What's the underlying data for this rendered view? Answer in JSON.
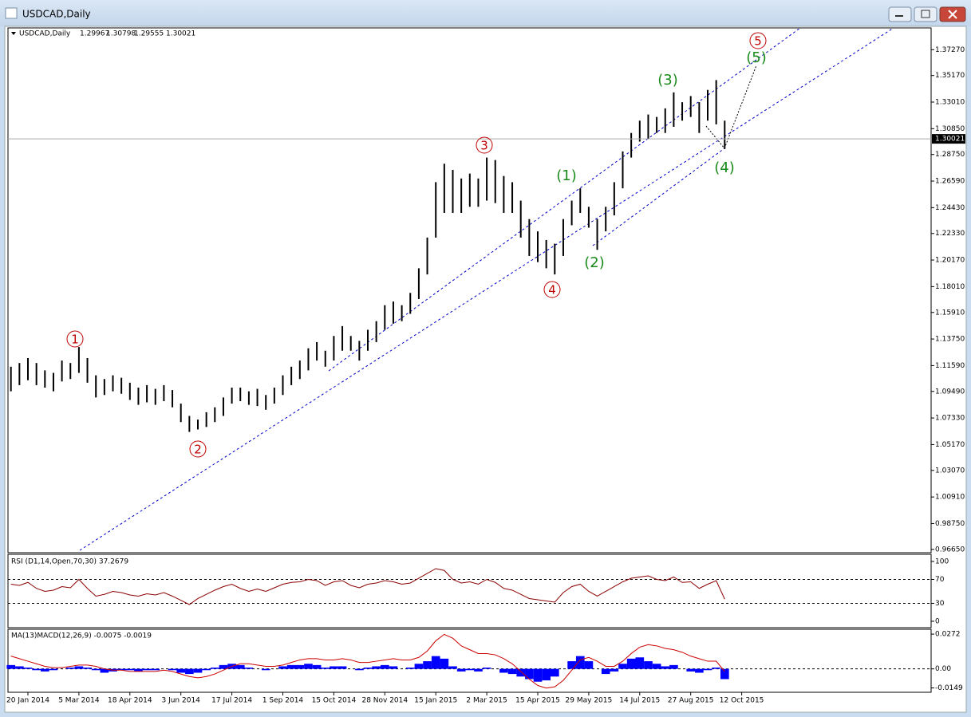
{
  "window": {
    "title": "USDCAD,Daily"
  },
  "chart_data": [
    {
      "type": "ohlc",
      "symbol": "USDCAD,Daily",
      "quote": [
        1.29967,
        1.30798,
        1.29555,
        1.30021
      ],
      "xticks": [
        {
          "value": 2,
          "label": "20 Jan 2014"
        },
        {
          "value": 8,
          "label": "5 Mar 2014"
        },
        {
          "value": 14,
          "label": "18 Apr 2014"
        },
        {
          "value": 20,
          "label": "3 Jun 2014"
        },
        {
          "value": 26,
          "label": "17 Jul 2014"
        },
        {
          "value": 32,
          "label": "1 Sep 2014"
        },
        {
          "value": 38,
          "label": "15 Oct 2014"
        },
        {
          "value": 44,
          "label": "28 Nov 2014"
        },
        {
          "value": 50,
          "label": "15 Jan 2015"
        },
        {
          "value": 56,
          "label": "2 Mar 2015"
        },
        {
          "value": 62,
          "label": "15 Apr 2015"
        },
        {
          "value": 68,
          "label": "29 May 2015"
        },
        {
          "value": 74,
          "label": "14 Jul 2015"
        },
        {
          "value": 80,
          "label": "27 Aug 2015"
        },
        {
          "value": 86,
          "label": "12 Oct 2015"
        }
      ],
      "ylim": [
        0.9638,
        1.3904
      ],
      "yticks": [
        {
          "value": 1.3727,
          "label": "1.37270"
        },
        {
          "value": 1.3517,
          "label": "1.35170"
        },
        {
          "value": 1.3301,
          "label": "1.33010"
        },
        {
          "value": 1.3085,
          "label": "1.30850"
        },
        {
          "value": 1.2875,
          "label": "1.28750"
        },
        {
          "value": 1.2659,
          "label": "1.26590"
        },
        {
          "value": 1.2443,
          "label": "1.24430"
        },
        {
          "value": 1.2233,
          "label": "1.22330"
        },
        {
          "value": 1.2017,
          "label": "1.20170"
        },
        {
          "value": 1.1801,
          "label": "1.18010"
        },
        {
          "value": 1.1591,
          "label": "1.15910"
        },
        {
          "value": 1.1375,
          "label": "1.13750"
        },
        {
          "value": 1.1159,
          "label": "1.11590"
        },
        {
          "value": 1.0949,
          "label": "1.09490"
        },
        {
          "value": 1.0733,
          "label": "1.07330"
        },
        {
          "value": 1.0517,
          "label": "1.05170"
        },
        {
          "value": 1.0307,
          "label": "1.03070"
        },
        {
          "value": 1.0091,
          "label": "1.00910"
        },
        {
          "value": 0.9875,
          "label": "0.98750"
        },
        {
          "value": 0.9665,
          "label": "0.96650"
        }
      ],
      "current_price": 1.30021,
      "color": "#000000",
      "highs": [
        1.115,
        1.118,
        1.122,
        1.118,
        1.112,
        1.11,
        1.12,
        1.118,
        1.131,
        1.122,
        1.108,
        1.105,
        1.108,
        1.106,
        1.102,
        1.098,
        1.1,
        1.097,
        1.1,
        1.096,
        1.085,
        1.075,
        1.072,
        1.078,
        1.082,
        1.09,
        1.098,
        1.098,
        1.095,
        1.097,
        1.092,
        1.098,
        1.108,
        1.115,
        1.12,
        1.13,
        1.135,
        1.128,
        1.14,
        1.148,
        1.14,
        1.136,
        1.145,
        1.152,
        1.165,
        1.168,
        1.165,
        1.175,
        1.195,
        1.22,
        1.265,
        1.28,
        1.275,
        1.268,
        1.272,
        1.268,
        1.285,
        1.283,
        1.27,
        1.265,
        1.25,
        1.235,
        1.225,
        1.218,
        1.215,
        1.235,
        1.25,
        1.26,
        1.245,
        1.235,
        1.245,
        1.265,
        1.29,
        1.305,
        1.315,
        1.32,
        1.318,
        1.325,
        1.338,
        1.33,
        1.335,
        1.33,
        1.34,
        1.348,
        1.315
      ],
      "lows": [
        1.095,
        1.1,
        1.104,
        1.1,
        1.098,
        1.095,
        1.103,
        1.105,
        1.11,
        1.102,
        1.09,
        1.092,
        1.095,
        1.093,
        1.088,
        1.084,
        1.086,
        1.084,
        1.087,
        1.082,
        1.07,
        1.062,
        1.064,
        1.066,
        1.07,
        1.075,
        1.085,
        1.087,
        1.084,
        1.083,
        1.08,
        1.085,
        1.092,
        1.1,
        1.105,
        1.112,
        1.12,
        1.115,
        1.12,
        1.128,
        1.128,
        1.12,
        1.128,
        1.135,
        1.145,
        1.15,
        1.152,
        1.158,
        1.17,
        1.19,
        1.22,
        1.24,
        1.24,
        1.24,
        1.245,
        1.245,
        1.25,
        1.248,
        1.24,
        1.24,
        1.22,
        1.205,
        1.2,
        1.195,
        1.19,
        1.205,
        1.23,
        1.24,
        1.228,
        1.21,
        1.225,
        1.238,
        1.26,
        1.285,
        1.298,
        1.3,
        1.305,
        1.305,
        1.31,
        1.315,
        1.318,
        1.305,
        1.315,
        1.312,
        1.292
      ],
      "waves_primary": [
        "1",
        "2",
        "3",
        "4",
        "5"
      ],
      "waves_minor": [
        "(1)",
        "(2)",
        "(3)",
        "(4)",
        "(5)"
      ]
    },
    {
      "type": "line",
      "title": "RSI (D1,14,Open,70,30) 37.2679",
      "ylim": [
        -10.7,
        112
      ],
      "yticks": [
        100,
        70,
        30,
        0
      ],
      "color": "#8b0000",
      "values": [
        62,
        60,
        65,
        55,
        50,
        52,
        58,
        56,
        70,
        55,
        42,
        45,
        50,
        48,
        44,
        42,
        46,
        44,
        48,
        42,
        35,
        28,
        38,
        45,
        52,
        58,
        62,
        55,
        50,
        54,
        50,
        56,
        62,
        65,
        66,
        70,
        68,
        60,
        66,
        68,
        60,
        56,
        62,
        64,
        68,
        66,
        62,
        64,
        72,
        80,
        88,
        85,
        70,
        64,
        66,
        62,
        70,
        65,
        55,
        52,
        45,
        38,
        36,
        34,
        32,
        48,
        58,
        62,
        50,
        42,
        50,
        58,
        66,
        72,
        74,
        76,
        70,
        68,
        74,
        65,
        66,
        55,
        62,
        68,
        37
      ]
    },
    {
      "type": "histogram",
      "title": "MA(13)MACD(12,26,9) -0.0075 -0.0019",
      "ylim": [
        -0.0183,
        0.031
      ],
      "yticks": [
        0.0272,
        {
          "value": 0,
          "label": "0.00"
        },
        -0.0149
      ],
      "color": "#0000ff",
      "line_color": "#cc0000",
      "values": [
        0.003,
        0.002,
        0.001,
        -0.001,
        -0.002,
        -0.001,
        0.0,
        0.001,
        0.002,
        0.001,
        -0.001,
        -0.003,
        -0.002,
        -0.001,
        -0.001,
        -0.002,
        -0.001,
        -0.001,
        0.0,
        -0.001,
        -0.003,
        -0.004,
        -0.003,
        -0.001,
        0.001,
        0.003,
        0.004,
        0.003,
        0.001,
        0.0,
        -0.001,
        0.0,
        0.002,
        0.003,
        0.003,
        0.004,
        0.003,
        0.001,
        0.002,
        0.002,
        0.0,
        -0.001,
        0.001,
        0.002,
        0.003,
        0.002,
        0.0,
        0.001,
        0.004,
        0.006,
        0.01,
        0.008,
        0.002,
        -0.002,
        -0.001,
        -0.002,
        0.001,
        0.0,
        -0.003,
        -0.004,
        -0.006,
        -0.008,
        -0.01,
        -0.009,
        -0.006,
        0.0,
        0.006,
        0.01,
        0.006,
        0.0,
        -0.004,
        -0.002,
        0.004,
        0.008,
        0.009,
        0.006,
        0.004,
        0.002,
        0.003,
        0.0,
        -0.002,
        -0.003,
        -0.001,
        0.001,
        -0.008
      ],
      "signal": [
        0.01,
        0.008,
        0.006,
        0.004,
        0.002,
        0.001,
        0.001,
        0.002,
        0.003,
        0.003,
        0.002,
        0.0,
        -0.001,
        -0.001,
        -0.002,
        -0.002,
        -0.002,
        -0.002,
        -0.001,
        -0.002,
        -0.004,
        -0.006,
        -0.007,
        -0.006,
        -0.004,
        -0.001,
        0.002,
        0.004,
        0.004,
        0.003,
        0.002,
        0.002,
        0.003,
        0.005,
        0.007,
        0.008,
        0.008,
        0.007,
        0.007,
        0.008,
        0.007,
        0.005,
        0.005,
        0.006,
        0.007,
        0.008,
        0.007,
        0.007,
        0.009,
        0.014,
        0.022,
        0.027,
        0.024,
        0.018,
        0.015,
        0.012,
        0.012,
        0.011,
        0.008,
        0.004,
        -0.002,
        -0.008,
        -0.013,
        -0.015,
        -0.014,
        -0.009,
        -0.001,
        0.007,
        0.009,
        0.006,
        0.002,
        0.002,
        0.006,
        0.012,
        0.017,
        0.019,
        0.018,
        0.016,
        0.015,
        0.013,
        0.01,
        0.008,
        0.006,
        0.006,
        -0.002
      ]
    }
  ]
}
